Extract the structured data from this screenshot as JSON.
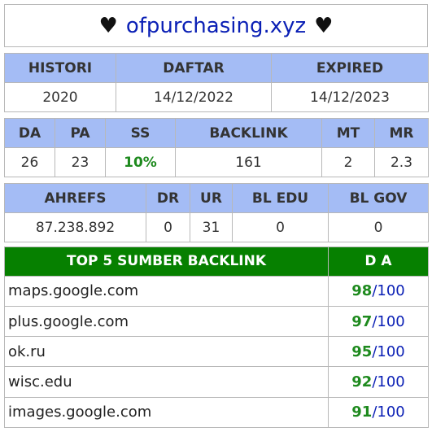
{
  "title": {
    "heart": "♥",
    "domain": "ofpurchasing.xyz"
  },
  "history": {
    "headers": [
      "HISTORI",
      "DAFTAR",
      "EXPIRED"
    ],
    "values": [
      "2020",
      "14/12/2022",
      "14/12/2023"
    ]
  },
  "metrics": {
    "headers": [
      "DA",
      "PA",
      "SS",
      "BACKLINK",
      "MT",
      "MR"
    ],
    "values": [
      "26",
      "23",
      "10%",
      "161",
      "2",
      "2.3"
    ]
  },
  "ahrefs": {
    "headers": [
      "AHREFS",
      "DR",
      "UR",
      "BL EDU",
      "BL GOV"
    ],
    "values": [
      "87.238.892",
      "0",
      "31",
      "0",
      "0"
    ]
  },
  "top_backlinks": {
    "header_source": "TOP 5 SUMBER BACKLINK",
    "header_da": "D A",
    "rows": [
      {
        "site": "maps.google.com",
        "da": "98",
        "max": "100"
      },
      {
        "site": "plus.google.com",
        "da": "97",
        "max": "100"
      },
      {
        "site": "ok.ru",
        "da": "95",
        "max": "100"
      },
      {
        "site": "wisc.edu",
        "da": "92",
        "max": "100"
      },
      {
        "site": "images.google.com",
        "da": "91",
        "max": "100"
      }
    ]
  },
  "colors": {
    "header_blue": "#a4bcf5",
    "header_green": "#068000",
    "value_green": "#1e8a1e",
    "link_blue": "#0a1fb5"
  }
}
